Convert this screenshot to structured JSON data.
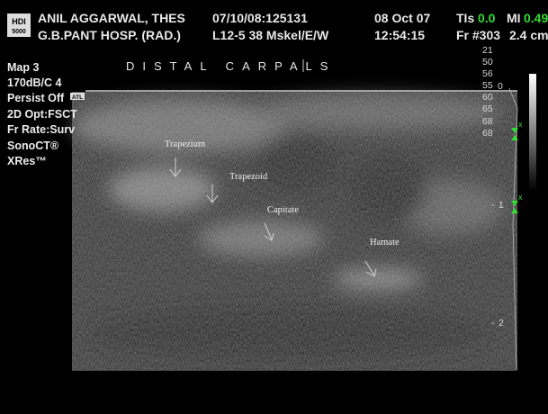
{
  "header": {
    "logo": [
      "HDI",
      "5000"
    ],
    "patient": "ANIL AGGARWAL, THES",
    "hospital": "G.B.PANT HOSP. (RAD.)",
    "study_id": "07/10/08:125131",
    "probe": "L12-5 38 Mskel/E/W",
    "date": "08 Oct 07",
    "time": "12:54:15",
    "tis_label": "TIs",
    "tis_value": "0.0",
    "mi_label": "MI",
    "mi_value": "0.49",
    "frame": "Fr #303",
    "depth": "2.4 cm"
  },
  "settings": [
    "Map 3",
    "170dB/C 4",
    "Persist Off",
    "2D Opt:FSCT",
    "Fr Rate:Surv",
    "SonoCT®",
    "XRes™"
  ],
  "badge": "ATL",
  "title": "DISTAL CARPALS",
  "scale_values": [
    "21",
    "50",
    "56",
    "55",
    "60",
    "65",
    "68",
    "68"
  ],
  "depth_marks": [
    "0",
    "1",
    "2"
  ],
  "labels": [
    "Trapezium",
    "Trapezoid",
    "Capitate",
    "Hamate"
  ]
}
